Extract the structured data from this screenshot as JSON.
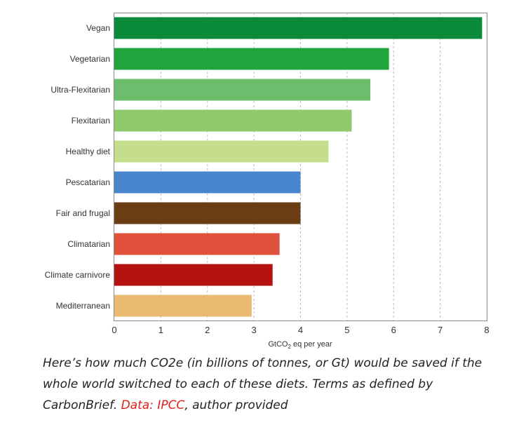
{
  "chart_data": {
    "type": "bar",
    "orientation": "horizontal",
    "categories": [
      "Vegan",
      "Vegetarian",
      "Ultra-Flexitarian",
      "Flexitarian",
      "Healthy diet",
      "Pescatarian",
      "Fair and frugal",
      "Climatarian",
      "Climate carnivore",
      "Mediterranean"
    ],
    "values": [
      7.9,
      5.9,
      5.5,
      5.1,
      4.6,
      4.0,
      4.0,
      3.55,
      3.4,
      2.95
    ],
    "colors": [
      "#0b8a3a",
      "#1fa53c",
      "#6dbd6d",
      "#8ec96a",
      "#c5de8b",
      "#4a86cd",
      "#6b3d15",
      "#e0513b",
      "#b5120f",
      "#e8ba72"
    ],
    "xlabel": "GtCO",
    "xlabel_sub": "2",
    "xlabel_rest": " eq per year",
    "xlim": [
      0,
      8
    ],
    "xticks": [
      0,
      1,
      2,
      3,
      4,
      5,
      6,
      7,
      8
    ],
    "grid": "vertical dashed"
  },
  "caption": {
    "text": "Here’s how much CO2e (in billions of tonnes, or Gt) would be saved if the whole world switched to each of these diets. Terms as defined by CarbonBrief. ",
    "link_text": "Data: IPCC",
    "suffix": ", author provided"
  }
}
